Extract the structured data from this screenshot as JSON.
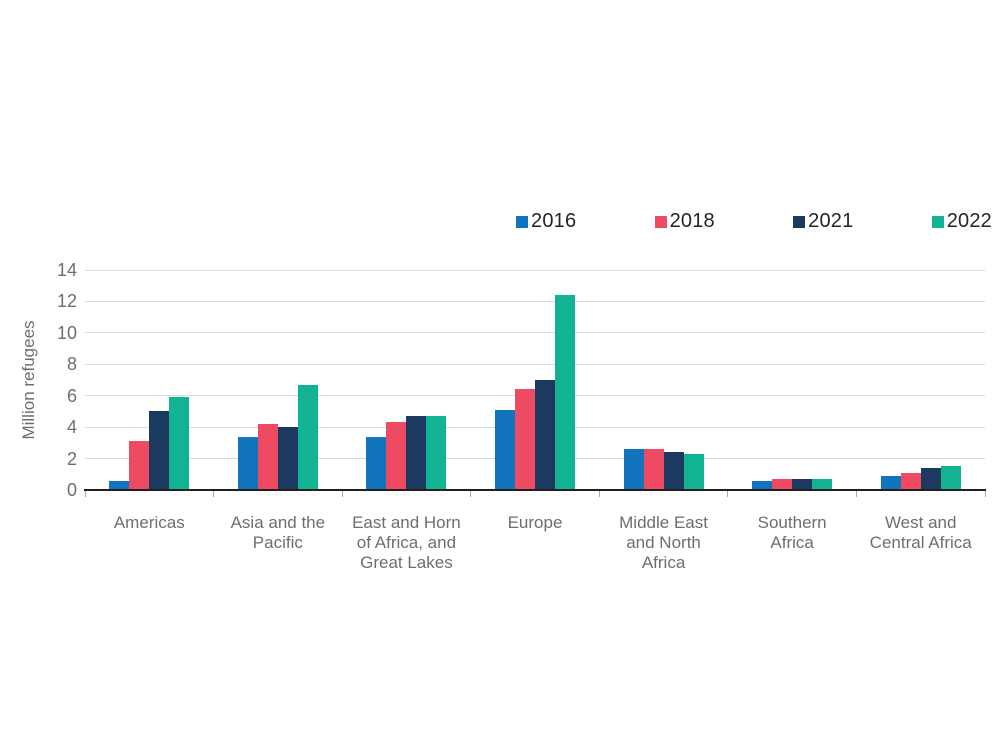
{
  "chart_data": {
    "type": "bar",
    "title": "",
    "xlabel": "",
    "ylabel": "Million refugees",
    "ylim": [
      0,
      14
    ],
    "yticks": [
      0,
      2,
      4,
      6,
      8,
      10,
      12,
      14
    ],
    "grid": "horizontal",
    "legend_position": "top-right",
    "categories": [
      "Americas",
      "Asia and the Pacific",
      "East and Horn of Africa, and Great Lakes",
      "Europe",
      "Middle East and North Africa",
      "Southern Africa",
      "West and Central Africa"
    ],
    "series": [
      {
        "name": "2016",
        "color": "#1274bc",
        "values": [
          0.6,
          3.4,
          3.4,
          5.1,
          2.6,
          0.6,
          0.9
        ]
      },
      {
        "name": "2018",
        "color": "#ee4a62",
        "values": [
          3.1,
          4.2,
          4.3,
          6.4,
          2.6,
          0.7,
          1.1
        ]
      },
      {
        "name": "2021",
        "color": "#1c3a60",
        "values": [
          5.0,
          4.0,
          4.7,
          7.0,
          2.4,
          0.7,
          1.4
        ]
      },
      {
        "name": "2022",
        "color": "#12b392",
        "values": [
          5.9,
          6.7,
          4.7,
          12.4,
          2.3,
          0.7,
          1.5
        ]
      }
    ],
    "colors": {
      "axis_line": "#231f20",
      "grid_line": "#d9d9d9",
      "tick_text": "#6d6e71",
      "legend_text": "#27251f",
      "background": "#ffffff"
    }
  }
}
